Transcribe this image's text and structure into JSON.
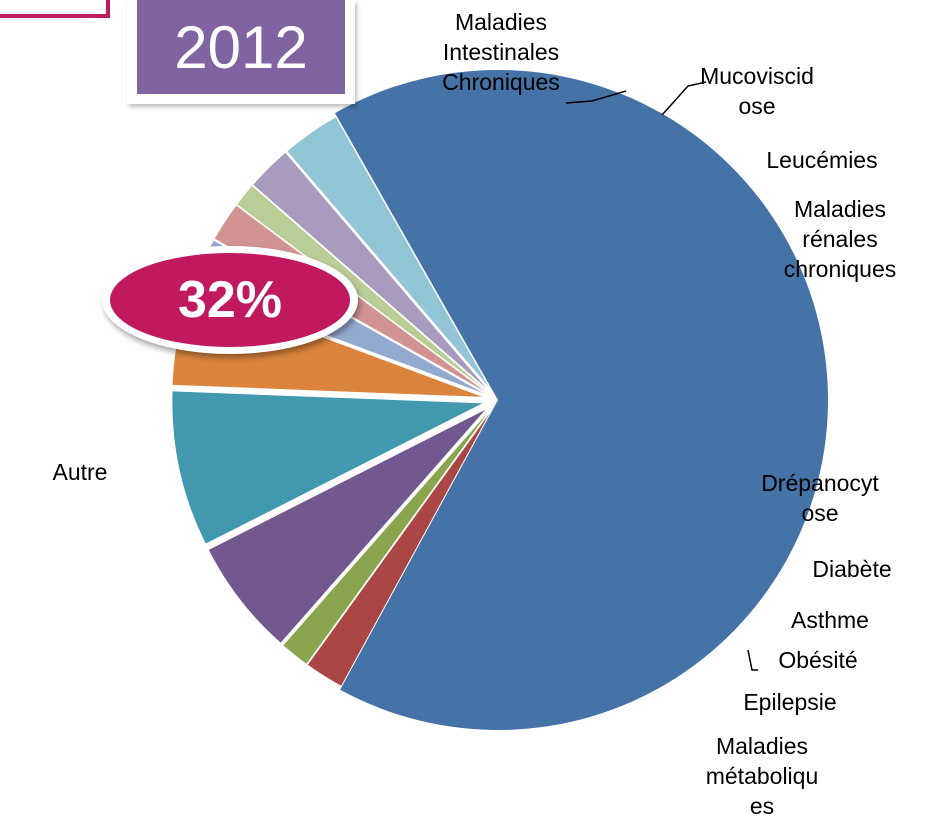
{
  "year_label": "2012",
  "percent_badge": "32%",
  "chart_data": {
    "type": "pie",
    "title": "",
    "slices": [
      {
        "label": [
          "Autre"
        ],
        "value": 65.5,
        "color": "#4572a7"
      },
      {
        "label": [
          "Maladies",
          "Intestinales",
          "Chroniques"
        ],
        "value": 2.0,
        "color": "#aa4643"
      },
      {
        "label": [
          "Mucoviscid",
          "ose"
        ],
        "value": 1.5,
        "color": "#89a54e"
      },
      {
        "label": [
          "Leucémies"
        ],
        "value": 6.0,
        "color": "#71588f"
      },
      {
        "label": [
          "Maladies",
          "rénales",
          "chroniques"
        ],
        "value": 8.0,
        "color": "#4198af"
      },
      {
        "label": [
          "Drépanocyt",
          "ose"
        ],
        "value": 5.0,
        "color": "#db843d"
      },
      {
        "label": [
          "Diabète"
        ],
        "value": 2.5,
        "color": "#93a9cf"
      },
      {
        "label": [
          "Asthme"
        ],
        "value": 2.0,
        "color": "#d19392"
      },
      {
        "label": [
          "Obésité"
        ],
        "value": 1.2,
        "color": "#b9cd96"
      },
      {
        "label": [
          "Epilepsie"
        ],
        "value": 2.3,
        "color": "#a99bbd"
      },
      {
        "label": [
          "Maladies",
          "métaboliqu",
          "es"
        ],
        "value": 3.0,
        "color": "#92c5d5"
      }
    ]
  }
}
